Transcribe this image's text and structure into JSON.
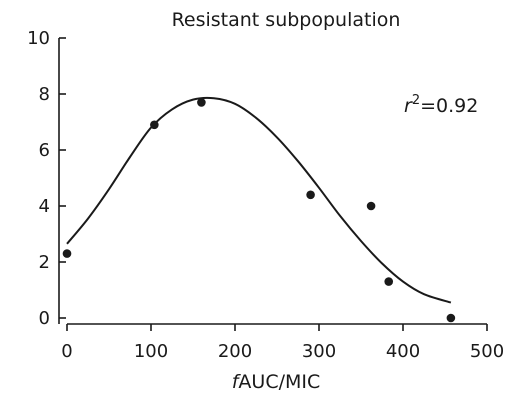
{
  "chart_data": {
    "type": "scatter",
    "title": "Resistant subpopulation",
    "xlabel_italic": "f",
    "xlabel_rest": "AUC/MIC",
    "ylabel": "",
    "xlim": [
      0,
      500
    ],
    "ylim": [
      0,
      10
    ],
    "xticks": [
      0,
      100,
      200,
      300,
      400,
      500
    ],
    "yticks": [
      0,
      2,
      4,
      6,
      8,
      10
    ],
    "grid": false,
    "legend": "none",
    "annotation": {
      "variable": "r",
      "superscript": "2",
      "text": "=0.92"
    },
    "series": [
      {
        "kind": "points",
        "x": [
          0,
          104,
          160,
          290,
          362,
          383,
          457
        ],
        "y": [
          2.3,
          6.9,
          7.7,
          4.4,
          4.0,
          1.3,
          0.0
        ]
      },
      {
        "kind": "fitted-curve",
        "x": [
          0,
          25,
          50,
          75,
          100,
          125,
          150,
          175,
          200,
          225,
          250,
          275,
          300,
          325,
          350,
          375,
          400,
          425,
          457
        ],
        "y": [
          2.65,
          3.55,
          4.6,
          5.75,
          6.8,
          7.45,
          7.8,
          7.85,
          7.65,
          7.15,
          6.45,
          5.6,
          4.65,
          3.65,
          2.75,
          1.95,
          1.3,
          0.85,
          0.55
        ]
      }
    ],
    "colors": {
      "ink": "#1a1a1a",
      "background": "#ffffff"
    }
  }
}
